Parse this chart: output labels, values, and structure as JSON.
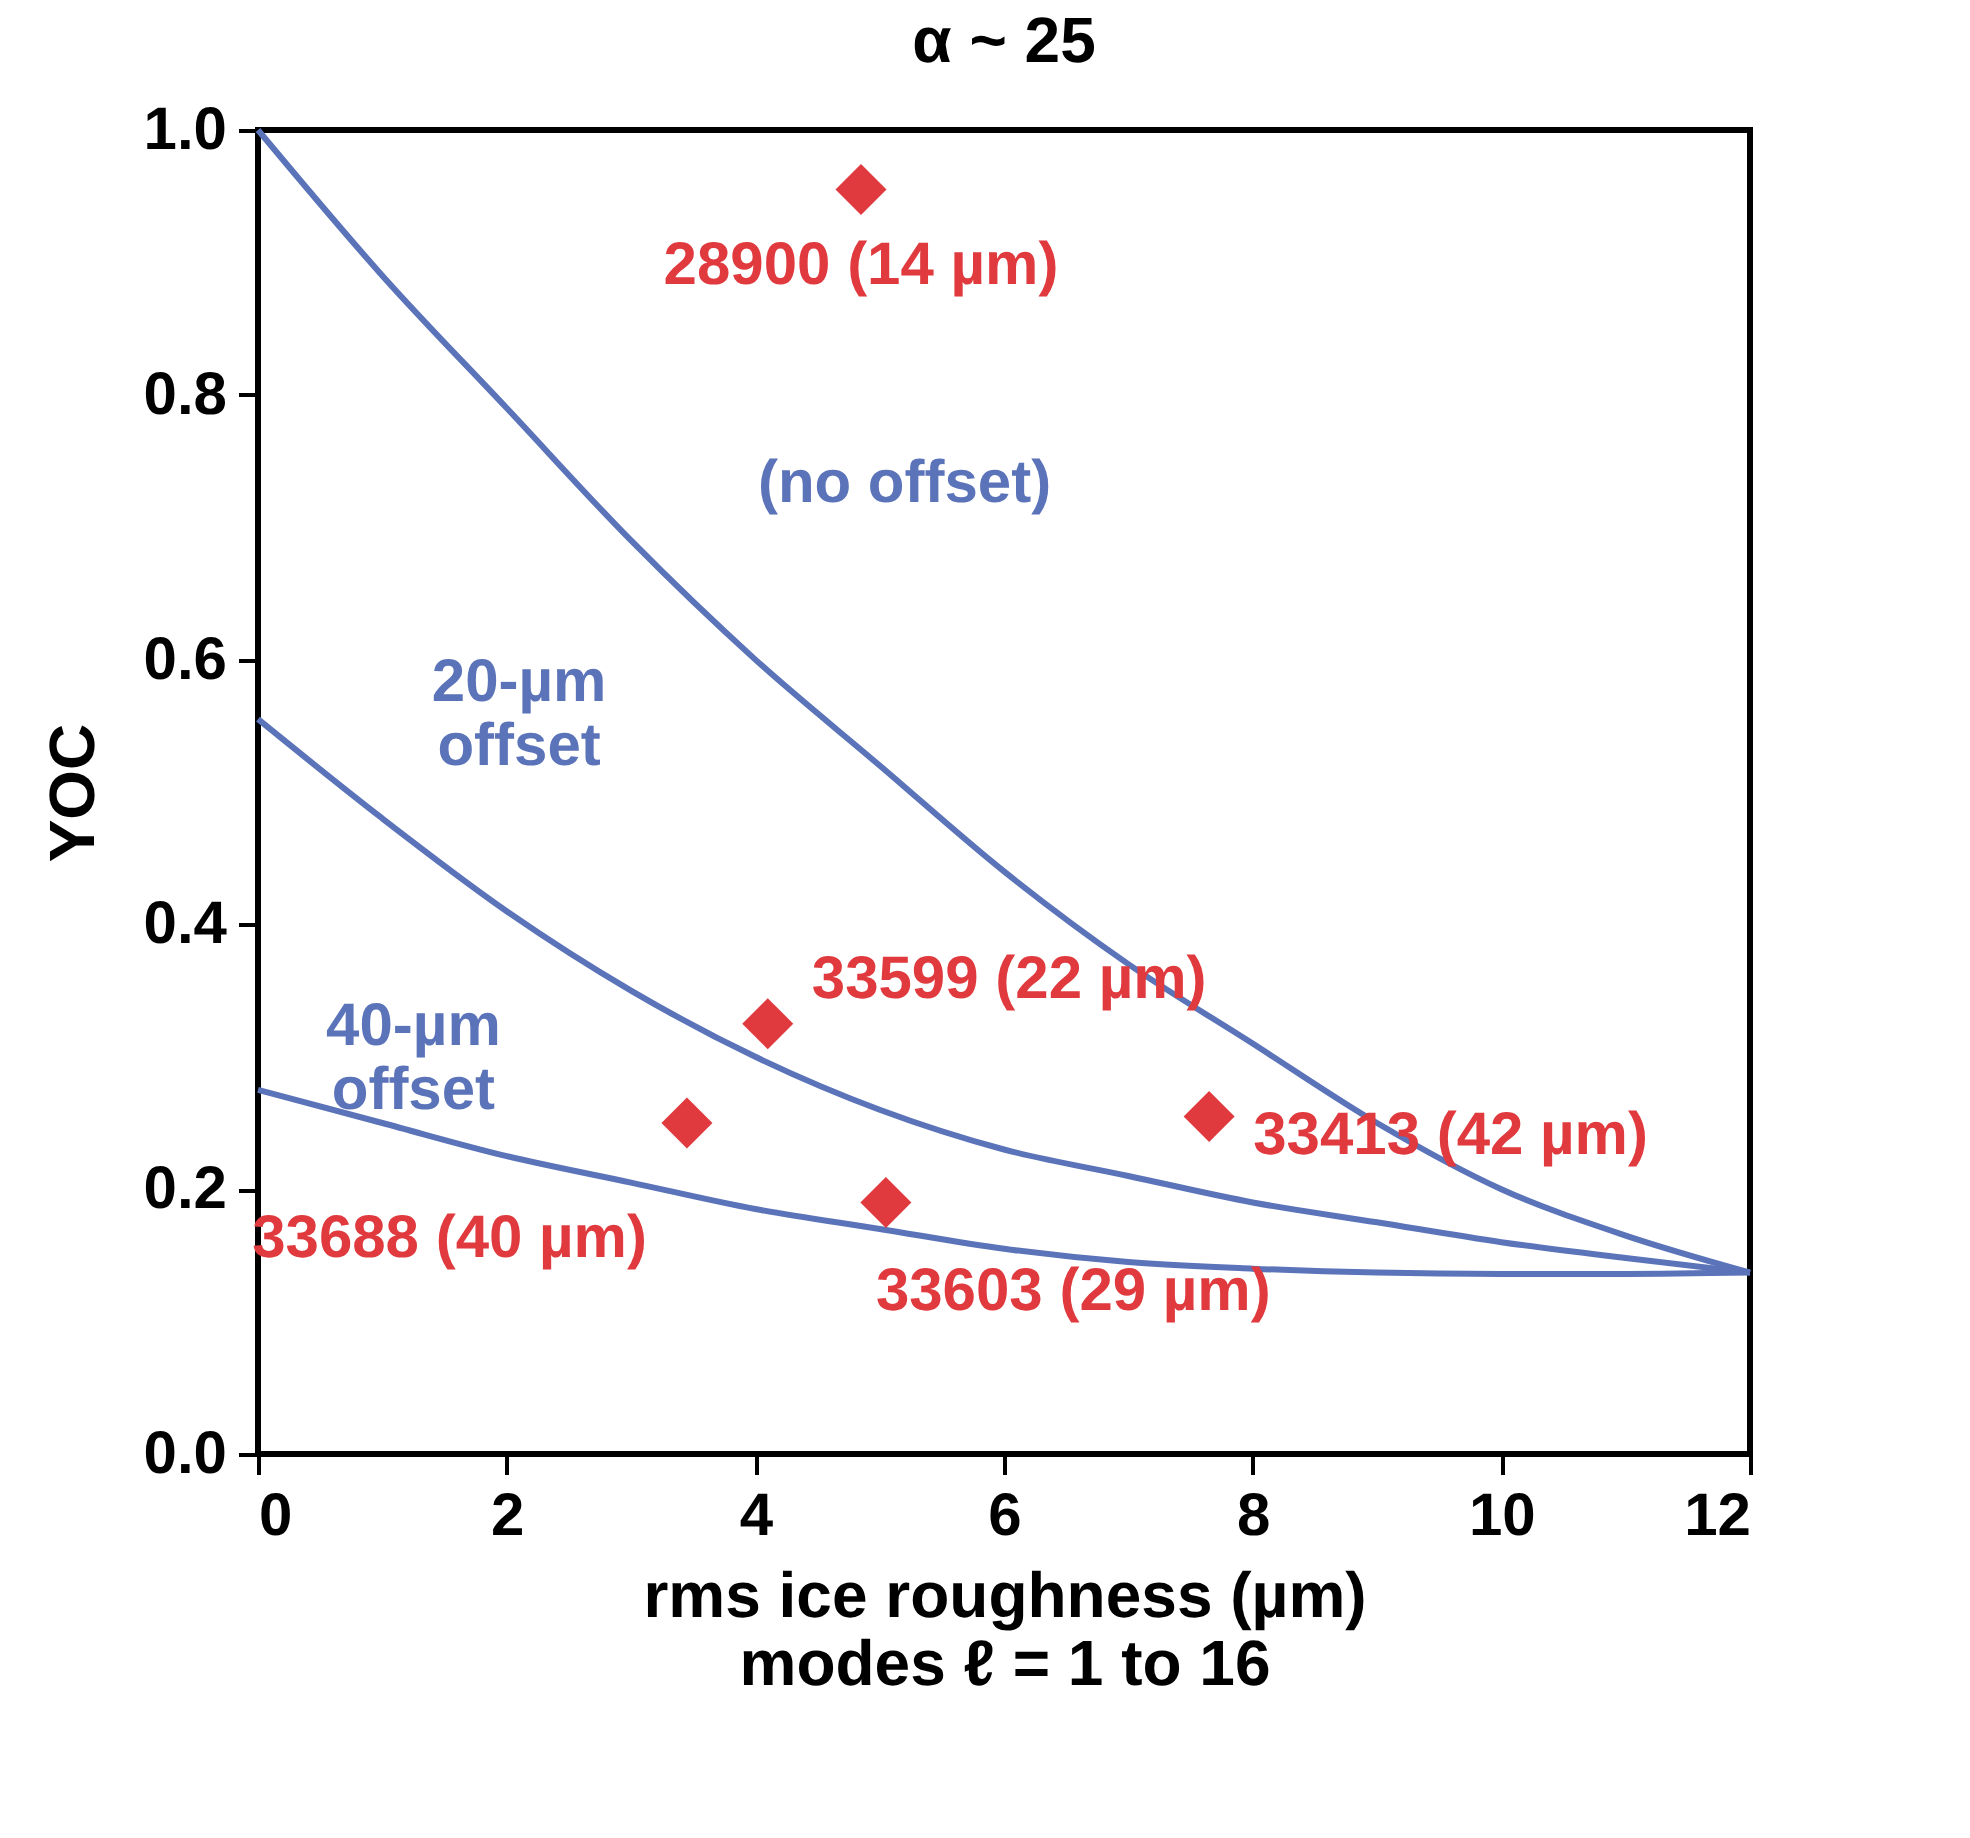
{
  "chart_data": {
    "type": "line",
    "title": "α ~ 25",
    "xlabel": "rms ice roughness (µm)\nmodes ℓ = 1 to 16",
    "ylabel": "YOC",
    "x": [
      0,
      1,
      2,
      3,
      4,
      5,
      6,
      7,
      8,
      9,
      10,
      11,
      12
    ],
    "series": [
      {
        "name": "(no offset)",
        "color": "#5b73b9",
        "values": [
          1.0,
          0.89,
          0.79,
          0.69,
          0.6,
          0.52,
          0.44,
          0.37,
          0.31,
          0.25,
          0.2,
          0.165,
          0.137
        ]
      },
      {
        "name": "20-µm offset",
        "color": "#5b73b9",
        "values": [
          0.555,
          0.48,
          0.41,
          0.35,
          0.3,
          0.26,
          0.23,
          0.21,
          0.19,
          0.175,
          0.16,
          0.148,
          0.137
        ]
      },
      {
        "name": "40-µm offset",
        "color": "#5b73b9",
        "values": [
          0.275,
          0.25,
          0.225,
          0.205,
          0.185,
          0.17,
          0.155,
          0.145,
          0.14,
          0.137,
          0.136,
          0.136,
          0.137
        ]
      },
      {
        "type": "scatter",
        "marker": "diamond",
        "color": "#e03a3e",
        "x": [
          4.85,
          4.1,
          7.65,
          3.45,
          5.05
        ],
        "values": [
          0.955,
          0.325,
          0.255,
          0.25,
          0.19
        ]
      }
    ],
    "annotations": [
      {
        "text": "28900 (14 µm)",
        "x": 4.85,
        "y": 0.955
      },
      {
        "text": "33599 (22 µm)",
        "x": 4.1,
        "y": 0.325
      },
      {
        "text": "33413 (42 µm)",
        "x": 7.65,
        "y": 0.255
      },
      {
        "text": "33688 (40 µm)",
        "x": 3.45,
        "y": 0.25
      },
      {
        "text": "33603 (29 µm)",
        "x": 5.05,
        "y": 0.19
      }
    ],
    "xlim": [
      0,
      12
    ],
    "xticks": [
      0,
      2,
      4,
      6,
      8,
      10,
      12
    ],
    "ylim": [
      0,
      1.0
    ],
    "yticks": [
      {
        "value": 0,
        "label": "0.0"
      },
      0.2,
      0.4,
      0.6,
      0.8,
      {
        "value": 1,
        "label": "1.0"
      }
    ],
    "grid": false,
    "line_style": "solid"
  }
}
